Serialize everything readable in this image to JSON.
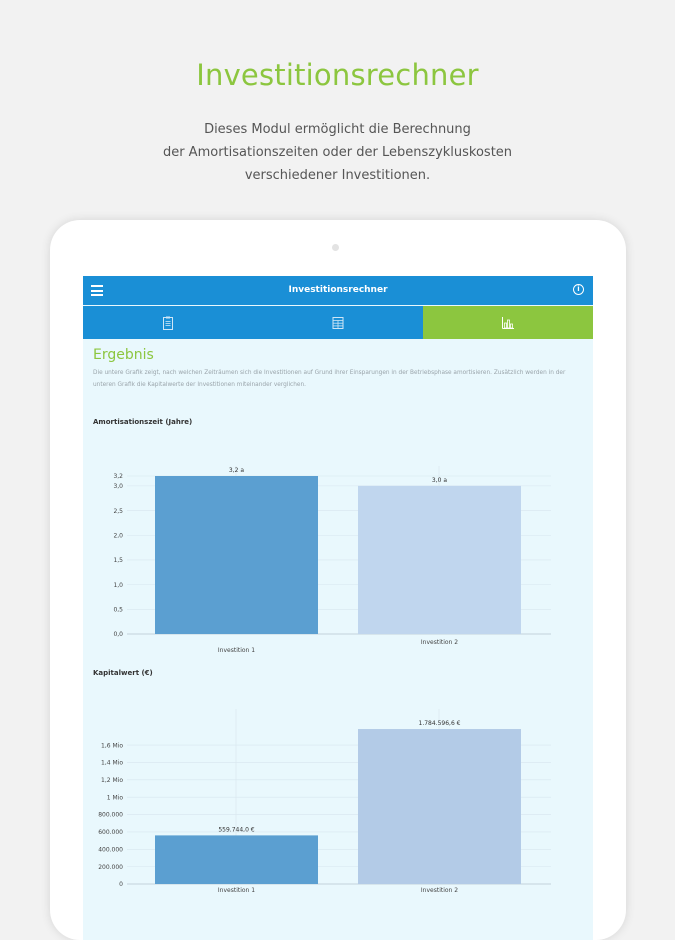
{
  "header": {
    "title": "Investitionsrechner",
    "subtitle_lines": [
      "Dieses Modul ermöglicht die Berechnung",
      "der Amortisationszeiten oder der Lebenszykluskosten",
      "verschiedener Investitionen."
    ]
  },
  "app": {
    "title": "Investitionsrechner",
    "menu_icon": "hamburger-menu-icon",
    "info_icon": "info-icon",
    "tabs": [
      {
        "icon": "clipboard-icon",
        "active": false,
        "color": "#1a8fd6"
      },
      {
        "icon": "calculator-icon",
        "active": false,
        "color": "#1a8fd6"
      },
      {
        "icon": "bar-chart-icon",
        "active": true,
        "color": "#8cc63f"
      }
    ],
    "section_title": "Ergebnis",
    "description": "Die untere Grafik zeigt, nach welchen Zeiträumen sich die Investitionen auf Grund ihrer Einsparungen in der Betriebsphase amortisieren. Zusätzlich werden in der unteren Grafik die Kapitalwerte der Investitionen miteinander verglichen."
  },
  "colors": {
    "accent_green": "#8cc63f",
    "app_blue": "#1a8fd6",
    "bar_dark": "#5b9fd1",
    "bar_light": "#c0d6ee",
    "bar_light2": "#b3cbe7"
  },
  "chart_data": [
    {
      "type": "bar",
      "title": "Amortisationszeit (Jahre)",
      "categories": [
        "Investition 1",
        "Investition 2"
      ],
      "values": [
        3.2,
        3.0
      ],
      "data_labels": [
        "3,2 a",
        "3,0 a"
      ],
      "yticks": [
        0.0,
        0.5,
        1.0,
        1.5,
        2.0,
        2.5,
        3.0,
        3.2
      ],
      "ytick_labels": [
        "0,0",
        "0,5",
        "1,0",
        "1,5",
        "2,0",
        "2,5",
        "3,0",
        "3,2"
      ],
      "ylim": [
        0,
        3.2
      ],
      "grid": true
    },
    {
      "type": "bar",
      "title": "Kapitalwert (€)",
      "categories": [
        "Investition 1",
        "Investition 2"
      ],
      "values": [
        559744.0,
        1784596.6
      ],
      "data_labels": [
        "559.744,0 €",
        "1.784.596,6 €"
      ],
      "yticks": [
        0,
        200000,
        400000,
        600000,
        800000,
        1000000,
        1200000,
        1400000,
        1600000
      ],
      "ytick_labels": [
        "0",
        "200.000",
        "400.000",
        "600.000",
        "800.000",
        "1 Mio",
        "1,2 Mio",
        "1,4 Mio",
        "1,6 Mio"
      ],
      "ylim": [
        0,
        1900000
      ],
      "grid": true
    }
  ]
}
